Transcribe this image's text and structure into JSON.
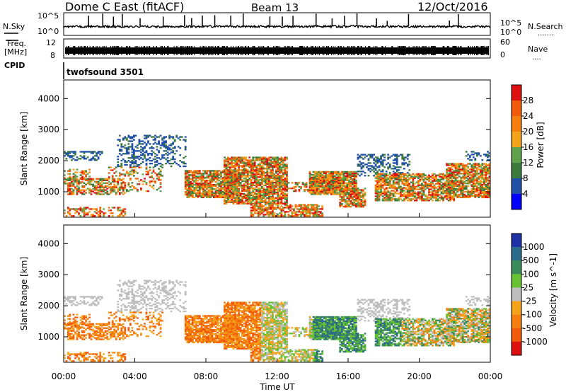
{
  "header": {
    "station": "Dome C East (fitACF)",
    "beam": "Beam 13",
    "date": "12/Oct/2016"
  },
  "strip_labels": {
    "nsky": "N.Sky",
    "freq_line1": "Freq.",
    "freq_line2": "[MHz]",
    "cpid": "CPID",
    "nsearch": "N.Search",
    "nsearch_dots": ".......",
    "nave": "Nave",
    "nave_dots": "....",
    "noise_top_left": "10^5",
    "noise_bottom_left": "10^0",
    "noise_top_right": "10^5",
    "noise_bottom_right": "10^0",
    "freq_top_left": "12",
    "freq_bottom_left": "8",
    "nave_top_right": "60",
    "nave_bottom_right": "0"
  },
  "cpid_label": "twofsound 3501",
  "colors": {
    "power_scale": [
      "#0000ff",
      "#1f4fa6",
      "#3b7a3b",
      "#5fa14a",
      "#f4a21a",
      "#f57e10",
      "#f05a0a",
      "#dd1010"
    ],
    "velocity_scale": [
      "#dd1010",
      "#f05a0a",
      "#f57e10",
      "#f4a21a",
      "#bebebe",
      "#66c133",
      "#3b8a5a",
      "#2a6a8a",
      "#1f2fa6"
    ],
    "ground_scatter": "#bebebe"
  },
  "chart_data": [
    {
      "type": "heatmap",
      "name": "power",
      "ylabel": "Slant Range [km]",
      "colorbar_label": "Power [dB]",
      "colorbar_ticks": [
        "4",
        "8",
        "12",
        "16",
        "20",
        "24",
        "28"
      ],
      "y_ticks": [
        "1000",
        "2000",
        "3000",
        "4000"
      ],
      "x_ticks": [
        "00:00",
        "04:00",
        "08:00",
        "12:00",
        "16:00",
        "20:00",
        "00:00"
      ],
      "xlim": [
        0,
        24
      ],
      "ylim": [
        180,
        4600
      ],
      "clim": [
        0,
        32
      ]
    },
    {
      "type": "heatmap",
      "name": "velocity",
      "ylabel": "Slant Range [km]",
      "colorbar_label": "Velocity [m s^-1]",
      "colorbar_ticks": [
        "1000",
        "500",
        "100",
        "25",
        "-25",
        "-100",
        "-500",
        "-1000"
      ],
      "y_ticks": [
        "1000",
        "2000",
        "3000",
        "4000"
      ],
      "x_ticks": [
        "00:00",
        "04:00",
        "08:00",
        "12:00",
        "16:00",
        "20:00",
        "00:00"
      ],
      "xlabel": "Time UT",
      "xlim": [
        0,
        24
      ],
      "ylim": [
        180,
        4600
      ]
    }
  ]
}
